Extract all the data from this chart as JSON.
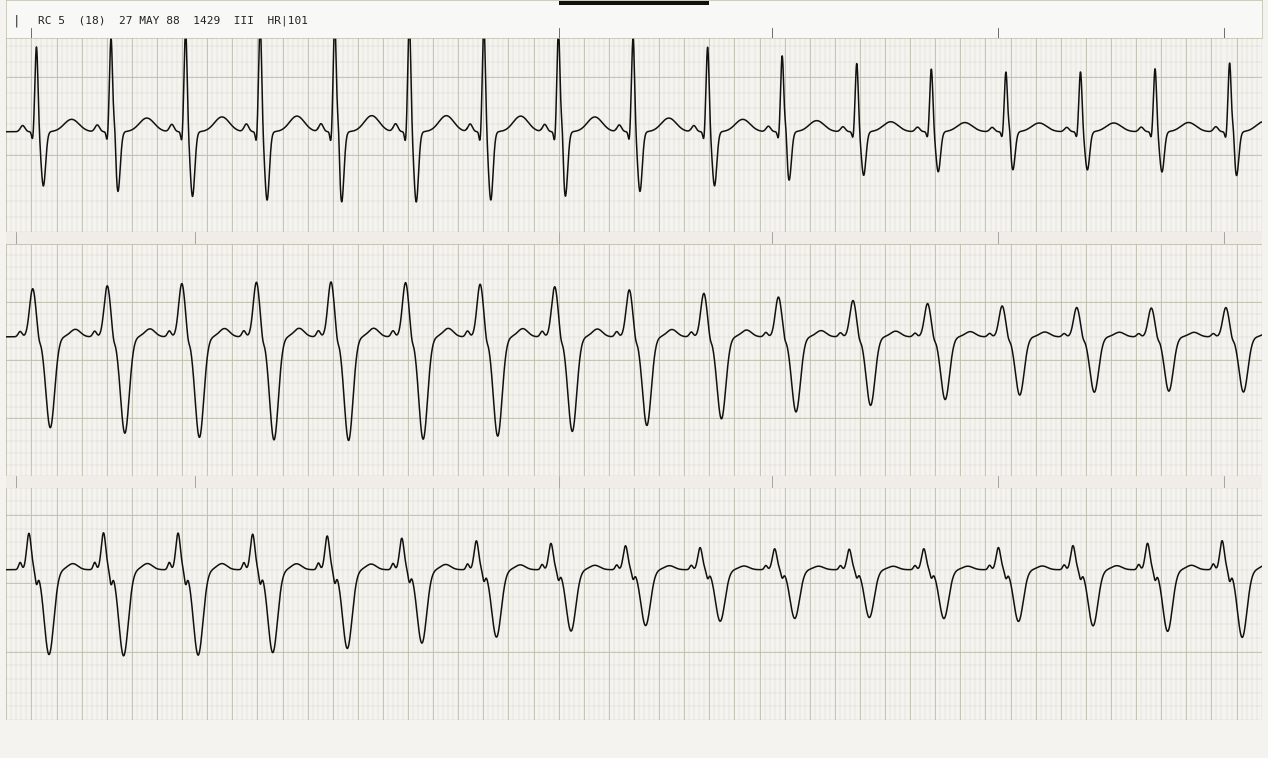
{
  "bg_color": "#f5f3f0",
  "grid_minor_color": "#ccccbb",
  "grid_major_color": "#bbbbaa",
  "ecg_color": "#111111",
  "header_text": "RC 5  (18)  27 MAY 88  1429  III  HR|101",
  "header_color": "#222222",
  "fig_width": 12.68,
  "fig_height": 7.58,
  "dpi": 100,
  "line_width": 1.1,
  "grid_linewidth_minor": 0.25,
  "grid_linewidth_major": 0.55,
  "top_bar_color": "#111111",
  "separator_color": "#bbbbaa"
}
